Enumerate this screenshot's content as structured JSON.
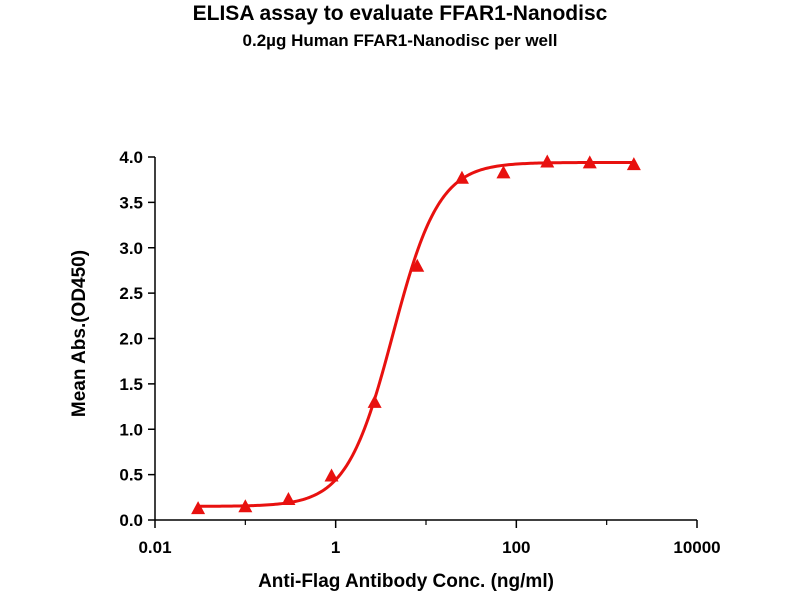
{
  "chart_data": {
    "type": "scatter",
    "title": "ELISA assay to evaluate FFAR1-Nanodisc",
    "subtitle": "0.2µg Human FFAR1-Nanodisc per well",
    "xlabel": "Anti-Flag Antibody Conc. (ng/ml)",
    "ylabel": "Mean Abs.(OD450)",
    "x_scale": "log",
    "xlim": [
      0.01,
      10000
    ],
    "ylim": [
      0,
      4.0
    ],
    "x_ticks": [
      0.01,
      1,
      100,
      10000
    ],
    "x_tick_labels": [
      "0.01",
      "1",
      "100",
      "10000"
    ],
    "y_ticks": [
      0,
      0.5,
      1.0,
      1.5,
      2.0,
      2.5,
      3.0,
      3.5,
      4.0
    ],
    "y_tick_labels": [
      "0.0",
      "0.5",
      "1.0",
      "1.5",
      "2.0",
      "2.5",
      "3.0",
      "3.5",
      "4.0"
    ],
    "marker": "triangle",
    "color": "#e8110f",
    "fit": "4PL",
    "grid": false,
    "series": [
      {
        "x": [
          0.03,
          0.1,
          0.3,
          0.9,
          2.7,
          8.0,
          25,
          72,
          220,
          650,
          2000
        ],
        "y": [
          0.12,
          0.14,
          0.22,
          0.48,
          1.29,
          2.79,
          3.76,
          3.82,
          3.94,
          3.93,
          3.91
        ]
      }
    ]
  }
}
